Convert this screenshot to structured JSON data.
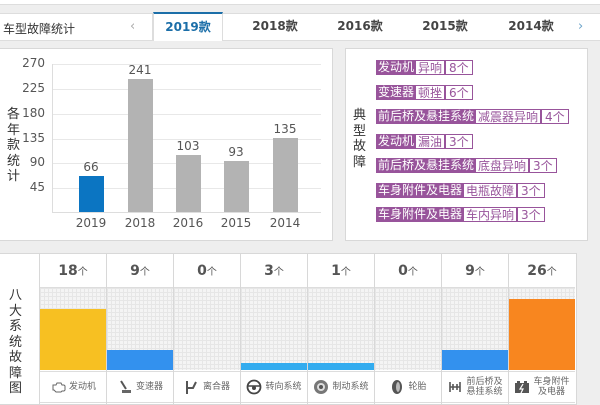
{
  "header": {
    "title": "车型故障统计",
    "prev_icon": "‹",
    "next_icon": "›",
    "tabs": [
      {
        "label": "2019款",
        "active": true
      },
      {
        "label": "2018款",
        "active": false
      },
      {
        "label": "2016款",
        "active": false
      },
      {
        "label": "2015款",
        "active": false
      },
      {
        "label": "2014款",
        "active": false
      }
    ]
  },
  "chart_panel": {
    "ylabel": "各年款统计",
    "highlight_color": "#0b75c2",
    "bar_color": "#b3b3b3"
  },
  "chart_data": {
    "type": "bar",
    "title": "",
    "xlabel": "",
    "ylabel": "各年款统计",
    "categories": [
      "2019",
      "2018",
      "2016",
      "2015",
      "2014"
    ],
    "values": [
      66,
      241,
      103,
      93,
      135
    ],
    "yticks": [
      45,
      90,
      135,
      180,
      225,
      270
    ],
    "ylim": [
      0,
      270
    ],
    "grid": true,
    "highlighted": "2019"
  },
  "fault_panel": {
    "label": "典型故障",
    "accent_color": "#98549b",
    "items": [
      {
        "system": "发动机",
        "issue": "异响",
        "count": "8个"
      },
      {
        "system": "变速器",
        "issue": "顿挫",
        "count": "6个"
      },
      {
        "system": "前后桥及悬挂系统",
        "issue": "减震器异响",
        "count": "4个"
      },
      {
        "system": "发动机",
        "issue": "漏油",
        "count": "3个"
      },
      {
        "system": "前后桥及悬挂系统",
        "issue": "底盘异响",
        "count": "3个"
      },
      {
        "system": "车身附件及电器",
        "issue": "电瓶故障",
        "count": "3个"
      },
      {
        "system": "车身附件及电器",
        "issue": "车内异响",
        "count": "3个"
      }
    ]
  },
  "system_panel": {
    "label": "八大系统故障图",
    "unit": "个",
    "systems": [
      {
        "name": "发动机",
        "count": "18",
        "icon": "engine-icon",
        "color": "#f7c022",
        "fill_pct": 75
      },
      {
        "name": "变速器",
        "count": "9",
        "icon": "gear-shifter-icon",
        "color": "#3391ee",
        "fill_pct": 25
      },
      {
        "name": "离合器",
        "count": "0",
        "icon": "clutch-pedal-icon",
        "color": "#3391ee",
        "fill_pct": 0
      },
      {
        "name": "转向系统",
        "count": "3",
        "icon": "steering-wheel-icon",
        "color": "#33acef",
        "fill_pct": 8
      },
      {
        "name": "制动系统",
        "count": "1",
        "icon": "brake-disc-icon",
        "color": "#33acef",
        "fill_pct": 8
      },
      {
        "name": "轮胎",
        "count": "0",
        "icon": "tire-icon",
        "color": "#33acef",
        "fill_pct": 0
      },
      {
        "name": "前后桥及悬挂系统",
        "name_lines": [
          "前后桥及",
          "悬挂系统"
        ],
        "count": "9",
        "icon": "suspension-icon",
        "color": "#3391ee",
        "fill_pct": 25
      },
      {
        "name": "车身附件及电器",
        "name_lines": [
          "车身附件",
          "及电器"
        ],
        "count": "26",
        "icon": "battery-icon",
        "color": "#f8861f",
        "fill_pct": 87
      }
    ]
  }
}
